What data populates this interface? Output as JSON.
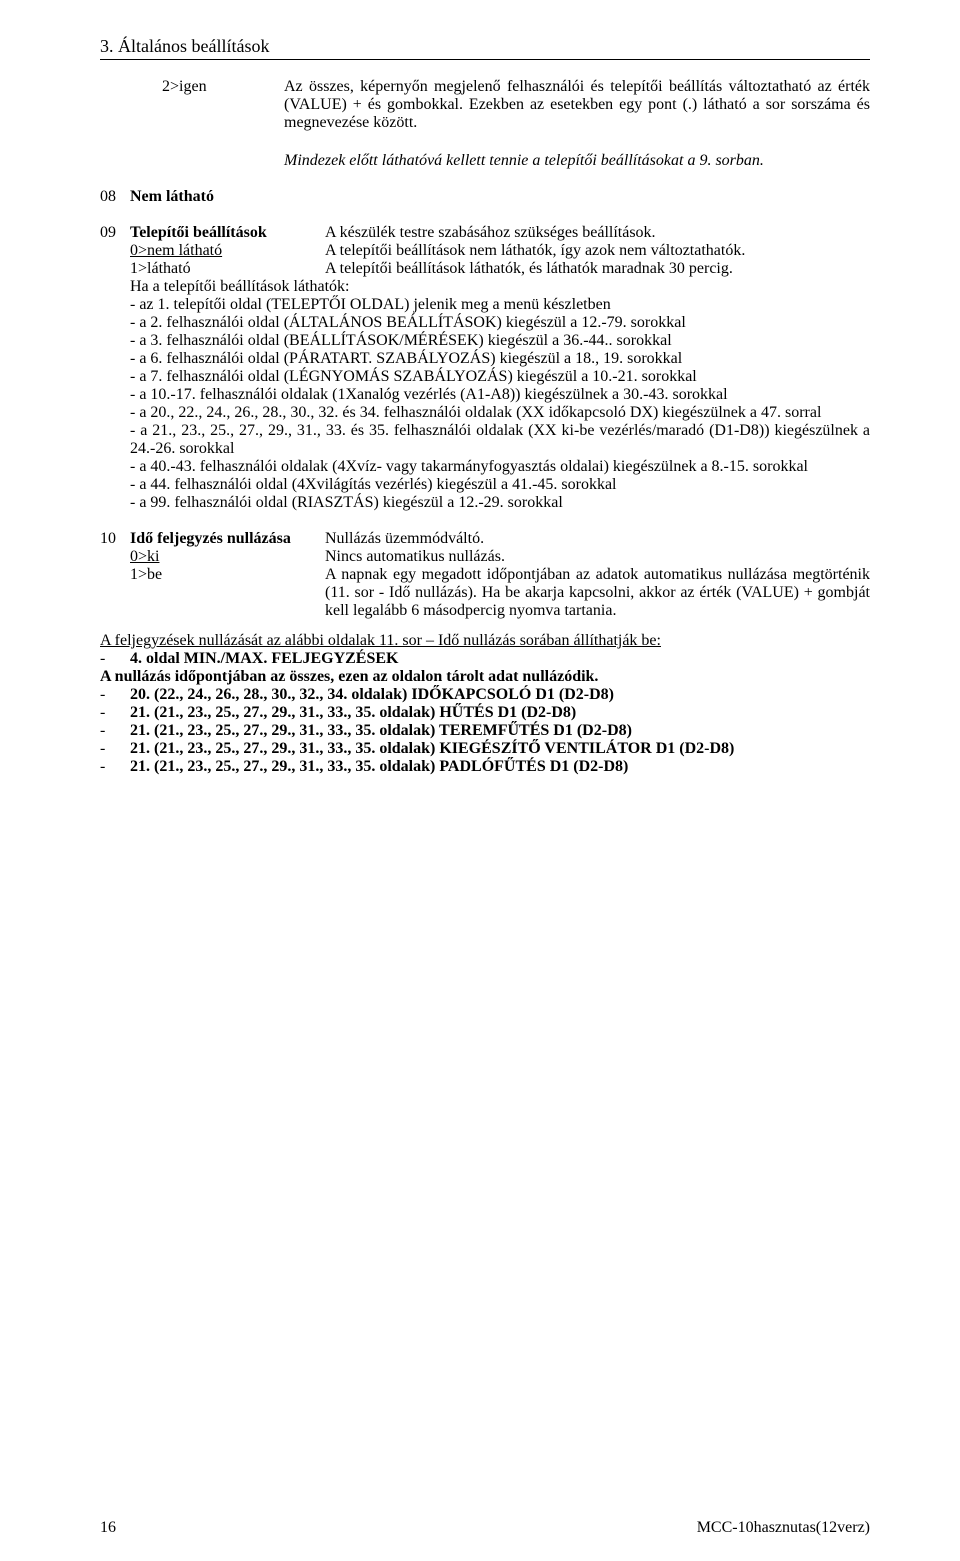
{
  "section_title": "3. Általános beállítások",
  "para1": {
    "left": "2>igen",
    "right1": "Az összes, képernyőn megjelenő felhasználói és telepítői beállítás változtatható az érték (VALUE) + és gombokkal. Ezekben az esetekben egy pont (.) látható a sor sorszáma és megnevezése között.",
    "right2": "Mindezek előtt láthatóvá kellett tennie a telepítői beállításokat a 9. sorban."
  },
  "r08": {
    "num": "08",
    "label": "Nem látható"
  },
  "r09": {
    "num": "09",
    "label": "Telepítői beállítások",
    "desc": "A készülék testre szabásához szükséges beállítások.",
    "sub1_label": "0>nem látható",
    "sub1_desc": "A telepítői beállítások nem láthatók, így azok nem változtathatók.",
    "sub2_label": "1>látható",
    "sub2_desc": "A telepítői beállítások láthatók, és láthatók maradnak 30 percig.",
    "ha_line": "Ha a telepítői beállítások láthatók:",
    "items": [
      "-  az 1. telepítői oldal (TELEPTŐI OLDAL) jelenik meg a menü készletben",
      "-  a 2. felhasználói oldal (ÁLTALÁNOS BEÁLLÍTÁSOK) kiegészül a 12.-79. sorokkal",
      "-  a 3. felhasználói oldal (BEÁLLÍTÁSOK/MÉRÉSEK) kiegészül a 36.-44.. sorokkal",
      "-  a 6. felhasználói oldal (PÁRATART. SZABÁLYOZÁS) kiegészül a 18., 19. sorokkal",
      "-  a 7. felhasználói oldal (LÉGNYOMÁS SZABÁLYOZÁS) kiegészül a 10.-21. sorokkal",
      "-  a 10.-17. felhasználói oldalak (1Xanalóg vezérlés (A1-A8)) kiegészülnek a 30.-43. sorokkal",
      "-  a 20., 22., 24., 26., 28., 30., 32. és 34. felhasználói oldalak (XX időkapcsoló DX) kiegészülnek a 47. sorral",
      "-  a 21., 23., 25., 27., 29., 31., 33. és 35. felhasználói oldalak (XX ki-be vezérlés/maradó (D1-D8)) kiegészülnek a 24.-26. sorokkal",
      "-  a 40.-43. felhasználói oldalak (4Xvíz- vagy takarmányfogyasztás oldalai) kiegészülnek a 8.-15. sorokkal",
      "-  a 44. felhasználói oldal (4Xvilágítás vezérlés) kiegészül a 41.-45. sorokkal",
      "-  a 99. felhasználói oldal (RIASZTÁS) kiegészül a 12.-29. sorokkal"
    ]
  },
  "r10": {
    "num": "10",
    "label": "Idő feljegyzés nullázása",
    "desc": "Nullázás üzemmódváltó.",
    "sub1_label": "0>ki",
    "sub1_desc": "Nincs automatikus nullázás.",
    "sub2_label": "1>be",
    "sub2_desc": "A napnak egy megadott időpontjában az adatok automatikus nullázása megtörténik (11. sor - Idő nullázás). Ha be akarja kapcsolni, akkor az érték (VALUE) + gombját kell legalább 6 másodpercig nyomva tartania."
  },
  "underline_line": "A feljegyzések nullázását az alábbi oldalak 11. sor – Idő nullázás sorában állíthatják be:",
  "list_b1": "4. oldal MIN./MAX. FELJEGYZÉSEK",
  "bold_line": "A nullázás időpontjában az összes, ezen az oldalon tárolt adat nullázódik.",
  "list_items": [
    "20. (22., 24., 26., 28., 30., 32., 34. oldalak) IDŐKAPCSOLÓ D1 (D2-D8)",
    "21. (21., 23., 25., 27., 29., 31., 33., 35. oldalak) HŰTÉS D1 (D2-D8)",
    "21. (21., 23., 25., 27., 29., 31., 33., 35. oldalak) TEREMFŰTÉS D1 (D2-D8)",
    "21. (21., 23., 25., 27., 29., 31., 33., 35. oldalak) KIEGÉSZÍTŐ VENTILÁTOR D1 (D2-D8)",
    "21. (21., 23., 25., 27., 29., 31., 33., 35. oldalak) PADLÓFŰTÉS D1 (D2-D8)"
  ],
  "footer": {
    "page_num": "16",
    "doc_id": "MCC-10hasznutas(12verz)"
  },
  "dash": "-"
}
